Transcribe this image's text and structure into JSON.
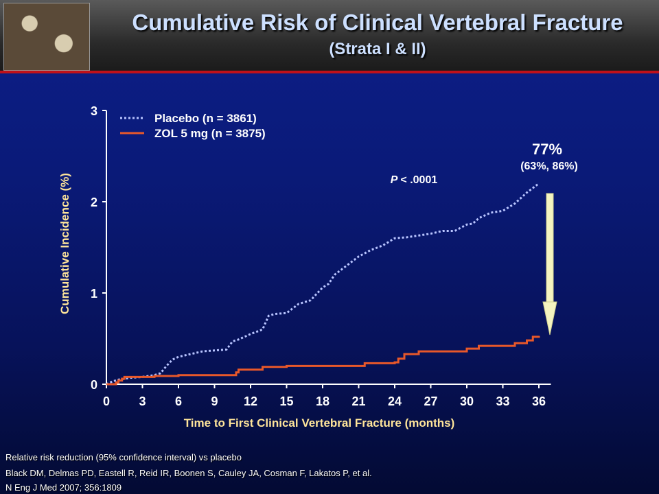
{
  "header": {
    "title": "Cumulative Risk of Clinical Vertebral Fracture",
    "subtitle": "(Strata I & II)"
  },
  "colors": {
    "placebo": "#b8c4ff",
    "zol": "#e8582a",
    "axis_text": "#ffffff",
    "label_text": "#ffe59a",
    "arrow": "#f4f4c0"
  },
  "annotation": {
    "reduction": "77%",
    "ci": "(63%, 86%)",
    "p_label": "P",
    "p_value": "< .0001"
  },
  "footer": {
    "line1": "Relative risk reduction (95% confidence interval) vs placebo",
    "line2": "Black DM, Delmas PD, Eastell R, Reid IR, Boonen S, Cauley JA, Cosman F, Lakatos P, et al.",
    "line3": "N Eng J Med 2007; 356:1809"
  },
  "chart_data": {
    "type": "line",
    "title": "Cumulative Risk of Clinical Vertebral Fracture",
    "xlabel": "Time to First Clinical Vertebral Fracture (months)",
    "ylabel": "Cumulative Incidence (%)",
    "xlim": [
      0,
      37
    ],
    "ylim": [
      0,
      3
    ],
    "xticks": [
      0,
      3,
      6,
      9,
      12,
      15,
      18,
      21,
      24,
      27,
      30,
      33,
      36
    ],
    "yticks": [
      0,
      1,
      2,
      3
    ],
    "legend_position": "top-left",
    "series": [
      {
        "name": "Placebo (n = 3861)",
        "style": "dotted",
        "x": [
          0,
          0.5,
          1,
          1.5,
          2,
          3,
          4,
          4.5,
          5,
          5.5,
          6,
          7,
          8,
          9,
          10,
          10.5,
          11,
          12,
          13,
          13.5,
          14,
          15,
          16,
          17,
          18,
          18.5,
          19,
          20,
          21,
          22,
          23,
          24,
          25,
          26,
          27,
          28,
          29,
          30,
          30.5,
          31,
          32,
          33,
          34,
          35,
          36
        ],
        "y": [
          0,
          0.03,
          0.05,
          0.06,
          0.07,
          0.08,
          0.1,
          0.12,
          0.2,
          0.27,
          0.3,
          0.33,
          0.36,
          0.37,
          0.38,
          0.47,
          0.49,
          0.55,
          0.6,
          0.75,
          0.77,
          0.78,
          0.88,
          0.92,
          1.06,
          1.1,
          1.2,
          1.3,
          1.4,
          1.47,
          1.52,
          1.6,
          1.61,
          1.63,
          1.65,
          1.68,
          1.68,
          1.75,
          1.76,
          1.82,
          1.88,
          1.9,
          1.98,
          2.1,
          2.2
        ]
      },
      {
        "name": "ZOL 5 mg (n = 3875)",
        "style": "solid",
        "x": [
          0,
          0.8,
          1,
          1.3,
          1.5,
          3,
          4,
          6,
          9,
          10,
          10.8,
          11,
          12,
          13,
          15,
          18,
          21,
          21.5,
          24,
          24.3,
          24.8,
          25,
          26,
          29,
          30,
          31,
          33,
          34,
          35,
          35.5,
          36
        ],
        "y": [
          0,
          0.02,
          0.04,
          0.06,
          0.08,
          0.08,
          0.09,
          0.1,
          0.1,
          0.1,
          0.13,
          0.16,
          0.16,
          0.19,
          0.2,
          0.2,
          0.2,
          0.23,
          0.24,
          0.28,
          0.33,
          0.33,
          0.36,
          0.36,
          0.39,
          0.42,
          0.42,
          0.45,
          0.48,
          0.52,
          0.53
        ]
      }
    ]
  }
}
